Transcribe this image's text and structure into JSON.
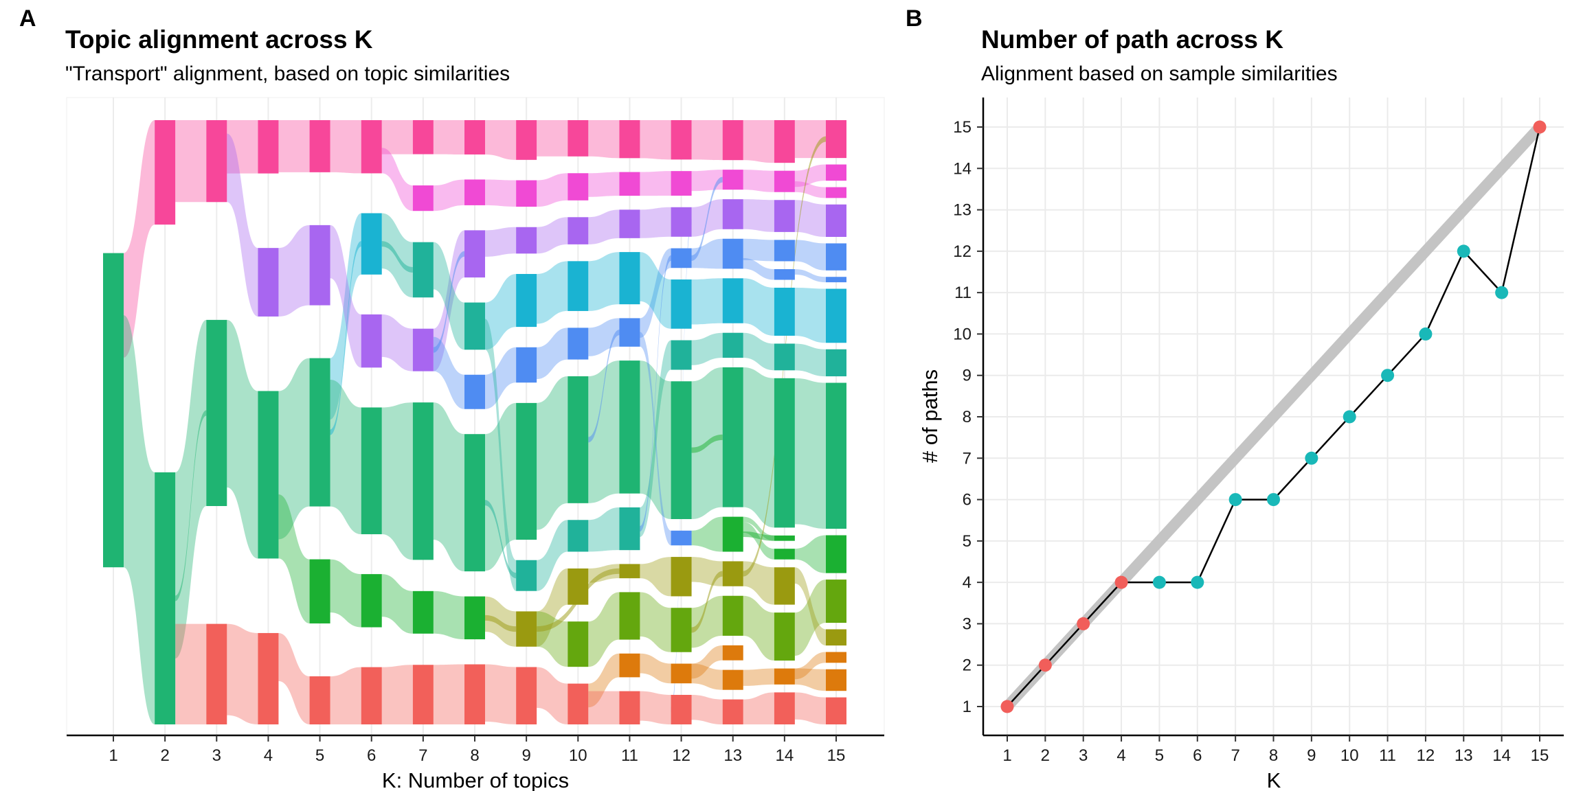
{
  "panels": {
    "a": {
      "tag": "A",
      "title": "Topic alignment across K",
      "subtitle": "\"Transport\" alignment, based on topic similarities",
      "xlabel": "K: Number of topics"
    },
    "b": {
      "tag": "B",
      "title": "Number of path across K",
      "subtitle": "Alignment based on sample similarities",
      "xlabel": "K",
      "ylabel": "# of paths"
    }
  },
  "colors": {
    "red": "#f2605a",
    "orange": "#dd7a0c",
    "olive": "#9a9a10",
    "lightgreen": "#64a70e",
    "green": "#1bb032",
    "emerald": "#1fb472",
    "teal": "#20b29a",
    "cyan": "#1ab3d2",
    "blue": "#4f8cf2",
    "purple": "#a866f0",
    "magenta": "#f04ad4",
    "pink": "#f7479a",
    "path_line": "#c4c4c4",
    "point_match": "#f15e5a",
    "point_diverge": "#19b8b8"
  },
  "chart_data": [
    {
      "type": "alluvial",
      "title": "Topic alignment across K",
      "subtitle": "\"Transport\" alignment, based on topic similarities",
      "xlabel": "K: Number of topics",
      "ylabel": "",
      "x": [
        1,
        2,
        3,
        4,
        5,
        6,
        7,
        8,
        9,
        10,
        11,
        12,
        13,
        14,
        15
      ],
      "value_unit": "proportion",
      "grid": "vertical",
      "topics": [
        {
          "k": 1,
          "color": "emerald",
          "size": 1.0,
          "src": null,
          "l": 1
        },
        {
          "k": 2,
          "color": "pink",
          "size": 0.29,
          "src": 0,
          "l": 1
        },
        {
          "k": 2,
          "color": "emerald",
          "size": 0.7,
          "src": 0,
          "l": 0
        },
        {
          "k": 3,
          "color": "pink",
          "size": 0.22,
          "src": 1,
          "l": 1
        },
        {
          "k": 3,
          "color": "emerald",
          "size": 0.5,
          "src": 2,
          "l": 1
        },
        {
          "k": 3,
          "color": "red",
          "size": 0.27,
          "src": 2,
          "l": 1
        },
        {
          "k": 4,
          "color": "pink",
          "size": 0.14,
          "src": 3,
          "l": 1
        },
        {
          "k": 4,
          "color": "purple",
          "size": 0.18,
          "src": 3,
          "l": 1
        },
        {
          "k": 4,
          "color": "emerald",
          "size": 0.44,
          "src": 4,
          "l": 1
        },
        {
          "k": 4,
          "color": "red",
          "size": 0.24,
          "src": 5,
          "l": 1
        },
        {
          "k": 5,
          "color": "pink",
          "size": 0.13,
          "src": 6,
          "l": 1
        },
        {
          "k": 5,
          "color": "purple",
          "size": 0.2,
          "src": 7,
          "l": 1
        },
        {
          "k": 5,
          "color": "emerald",
          "size": 0.37,
          "src": 8,
          "l": 1
        },
        {
          "k": 5,
          "color": "green",
          "size": 0.16,
          "src": 8,
          "l": 1
        },
        {
          "k": 5,
          "color": "red",
          "size": 0.12,
          "src": 9,
          "l": 1
        },
        {
          "k": 6,
          "color": "pink",
          "size": 0.13,
          "src": 10,
          "l": 1
        },
        {
          "k": 6,
          "color": "cyan",
          "size": 0.15,
          "src": 12,
          "l": 1
        },
        {
          "k": 6,
          "color": "purple",
          "size": 0.13,
          "src": 11,
          "l": 1
        },
        {
          "k": 6,
          "color": "emerald",
          "size": 0.31,
          "src": 12,
          "l": 1
        },
        {
          "k": 6,
          "color": "green",
          "size": 0.13,
          "src": 13,
          "l": 1
        },
        {
          "k": 6,
          "color": "red",
          "size": 0.14,
          "src": 14,
          "l": 1
        },
        {
          "k": 7,
          "color": "pink",
          "size": 0.08,
          "src": 15,
          "l": 1
        },
        {
          "k": 7,
          "color": "magenta",
          "size": 0.06,
          "src": 15,
          "l": 1
        },
        {
          "k": 7,
          "color": "teal",
          "size": 0.13,
          "src": 16,
          "l": 1
        },
        {
          "k": 7,
          "color": "purple",
          "size": 0.1,
          "src": 17,
          "l": 1
        },
        {
          "k": 7,
          "color": "emerald",
          "size": 0.37,
          "src": 18,
          "l": 1
        },
        {
          "k": 7,
          "color": "green",
          "size": 0.1,
          "src": 19,
          "l": 1
        },
        {
          "k": 7,
          "color": "red",
          "size": 0.14,
          "src": 20,
          "l": 1
        },
        {
          "k": 8,
          "color": "pink",
          "size": 0.08,
          "src": 21,
          "l": 1
        },
        {
          "k": 8,
          "color": "magenta",
          "size": 0.06,
          "src": 22,
          "l": 1
        },
        {
          "k": 8,
          "color": "purple",
          "size": 0.11,
          "src": 24,
          "l": 1
        },
        {
          "k": 8,
          "color": "teal",
          "size": 0.11,
          "src": 23,
          "l": 1
        },
        {
          "k": 8,
          "color": "blue",
          "size": 0.08,
          "src": 24,
          "l": 1
        },
        {
          "k": 8,
          "color": "emerald",
          "size": 0.32,
          "src": 25,
          "l": 1
        },
        {
          "k": 8,
          "color": "green",
          "size": 0.1,
          "src": 26,
          "l": 1
        },
        {
          "k": 8,
          "color": "red",
          "size": 0.14,
          "src": 27,
          "l": 1
        },
        {
          "k": 9,
          "color": "pink",
          "size": 0.09,
          "src": 28,
          "l": 1
        },
        {
          "k": 9,
          "color": "magenta",
          "size": 0.06,
          "src": 29,
          "l": 1
        },
        {
          "k": 9,
          "color": "purple",
          "size": 0.06,
          "src": 30,
          "l": 1
        },
        {
          "k": 9,
          "color": "cyan",
          "size": 0.12,
          "src": 31,
          "l": 1
        },
        {
          "k": 9,
          "color": "blue",
          "size": 0.08,
          "src": 32,
          "l": 1
        },
        {
          "k": 9,
          "color": "emerald",
          "size": 0.31,
          "src": 33,
          "l": 1
        },
        {
          "k": 9,
          "color": "teal",
          "size": 0.07,
          "src": 31,
          "l": 1
        },
        {
          "k": 9,
          "color": "olive",
          "size": 0.08,
          "src": 34,
          "l": 1
        },
        {
          "k": 9,
          "color": "red",
          "size": 0.13,
          "src": 35,
          "l": 1
        },
        {
          "k": 10,
          "color": "pink",
          "size": 0.08,
          "src": 36,
          "l": 1
        },
        {
          "k": 10,
          "color": "magenta",
          "size": 0.06,
          "src": 37,
          "l": 1
        },
        {
          "k": 10,
          "color": "purple",
          "size": 0.06,
          "src": 38,
          "l": 1
        },
        {
          "k": 10,
          "color": "cyan",
          "size": 0.11,
          "src": 39,
          "l": 1
        },
        {
          "k": 10,
          "color": "blue",
          "size": 0.07,
          "src": 40,
          "l": 1
        },
        {
          "k": 10,
          "color": "emerald",
          "size": 0.28,
          "src": 41,
          "l": 1
        },
        {
          "k": 10,
          "color": "teal",
          "size": 0.07,
          "src": 42,
          "l": 1
        },
        {
          "k": 10,
          "color": "olive",
          "size": 0.08,
          "src": 43,
          "l": 1
        },
        {
          "k": 10,
          "color": "lightgreen",
          "size": 0.1,
          "src": 43,
          "l": 1
        },
        {
          "k": 10,
          "color": "red",
          "size": 0.09,
          "src": 44,
          "l": 1
        },
        {
          "k": 11,
          "color": "pink",
          "size": 0.08,
          "src": 45,
          "l": 1
        },
        {
          "k": 11,
          "color": "magenta",
          "size": 0.05,
          "src": 46,
          "l": 1
        },
        {
          "k": 11,
          "color": "purple",
          "size": 0.06,
          "src": 47,
          "l": 1
        },
        {
          "k": 11,
          "color": "cyan",
          "size": 0.11,
          "src": 48,
          "l": 1
        },
        {
          "k": 11,
          "color": "blue",
          "size": 0.06,
          "src": 49,
          "l": 1
        },
        {
          "k": 11,
          "color": "emerald",
          "size": 0.28,
          "src": 50,
          "l": 1
        },
        {
          "k": 11,
          "color": "teal",
          "size": 0.09,
          "src": 51,
          "l": 1
        },
        {
          "k": 11,
          "color": "olive",
          "size": 0.03,
          "src": 52,
          "l": 1
        },
        {
          "k": 11,
          "color": "lightgreen",
          "size": 0.1,
          "src": 53,
          "l": 1
        },
        {
          "k": 11,
          "color": "orange",
          "size": 0.05,
          "src": 54,
          "l": 1
        },
        {
          "k": 11,
          "color": "red",
          "size": 0.07,
          "src": 54,
          "l": 1
        },
        {
          "k": 12,
          "color": "pink",
          "size": 0.08,
          "src": 55,
          "l": 1
        },
        {
          "k": 12,
          "color": "magenta",
          "size": 0.05,
          "src": 56,
          "l": 1
        },
        {
          "k": 12,
          "color": "purple",
          "size": 0.06,
          "src": 57,
          "l": 1
        },
        {
          "k": 12,
          "color": "blue",
          "size": 0.04,
          "src": 59,
          "l": 1
        },
        {
          "k": 12,
          "color": "cyan",
          "size": 0.1,
          "src": 58,
          "l": 1
        },
        {
          "k": 12,
          "color": "teal",
          "size": 0.06,
          "src": 61,
          "l": 1
        },
        {
          "k": 12,
          "color": "emerald",
          "size": 0.28,
          "src": 60,
          "l": 1
        },
        {
          "k": 12,
          "color": "blue",
          "size": 0.03,
          "src": 59,
          "l": 1
        },
        {
          "k": 12,
          "color": "olive",
          "size": 0.08,
          "src": 62,
          "l": 1
        },
        {
          "k": 12,
          "color": "lightgreen",
          "size": 0.09,
          "src": 63,
          "l": 1
        },
        {
          "k": 12,
          "color": "orange",
          "size": 0.04,
          "src": 64,
          "l": 1
        },
        {
          "k": 12,
          "color": "red",
          "size": 0.06,
          "src": 65,
          "l": 1
        },
        {
          "k": 13,
          "color": "pink",
          "size": 0.08,
          "src": 66,
          "l": 1
        },
        {
          "k": 13,
          "color": "magenta",
          "size": 0.04,
          "src": 67,
          "l": 1
        },
        {
          "k": 13,
          "color": "purple",
          "size": 0.06,
          "src": 68,
          "l": 1
        },
        {
          "k": 13,
          "color": "blue",
          "size": 0.06,
          "src": 69,
          "l": 1
        },
        {
          "k": 13,
          "color": "cyan",
          "size": 0.09,
          "src": 70,
          "l": 1
        },
        {
          "k": 13,
          "color": "teal",
          "size": 0.05,
          "src": 71,
          "l": 1
        },
        {
          "k": 13,
          "color": "emerald",
          "size": 0.28,
          "src": 72,
          "l": 1
        },
        {
          "k": 13,
          "color": "green",
          "size": 0.07,
          "src": 73,
          "l": 1
        },
        {
          "k": 13,
          "color": "olive",
          "size": 0.05,
          "src": 74,
          "l": 1
        },
        {
          "k": 13,
          "color": "lightgreen",
          "size": 0.08,
          "src": 75,
          "l": 1
        },
        {
          "k": 13,
          "color": "orange",
          "size": 0.03,
          "src": 76,
          "l": 1
        },
        {
          "k": 13,
          "color": "orange",
          "size": 0.04,
          "src": 76,
          "l": 1
        },
        {
          "k": 13,
          "color": "red",
          "size": 0.05,
          "src": 77,
          "l": 1
        },
        {
          "k": 14,
          "color": "pink",
          "size": 0.08,
          "src": 78,
          "l": 1
        },
        {
          "k": 14,
          "color": "magenta",
          "size": 0.04,
          "src": 79,
          "l": 1
        },
        {
          "k": 14,
          "color": "purple",
          "size": 0.06,
          "src": 80,
          "l": 1
        },
        {
          "k": 14,
          "color": "blue",
          "size": 0.04,
          "src": 81,
          "l": 1
        },
        {
          "k": 14,
          "color": "blue",
          "size": 0.02,
          "src": 81,
          "l": 1
        },
        {
          "k": 14,
          "color": "cyan",
          "size": 0.09,
          "src": 82,
          "l": 1
        },
        {
          "k": 14,
          "color": "teal",
          "size": 0.05,
          "src": 83,
          "l": 1
        },
        {
          "k": 14,
          "color": "emerald",
          "size": 0.28,
          "src": 84,
          "l": 1
        },
        {
          "k": 14,
          "color": "green",
          "size": 0.01,
          "src": 85,
          "l": 1
        },
        {
          "k": 14,
          "color": "green",
          "size": 0.02,
          "src": 85,
          "l": 1
        },
        {
          "k": 14,
          "color": "olive",
          "size": 0.07,
          "src": 86,
          "l": 1
        },
        {
          "k": 14,
          "color": "lightgreen",
          "size": 0.09,
          "src": 87,
          "l": 1
        },
        {
          "k": 14,
          "color": "orange",
          "size": 0.03,
          "src": 89,
          "l": 1
        },
        {
          "k": 14,
          "color": "red",
          "size": 0.06,
          "src": 90,
          "l": 1
        },
        {
          "k": 15,
          "color": "pink",
          "size": 0.07,
          "src": 91,
          "l": 1
        },
        {
          "k": 15,
          "color": "magenta",
          "size": 0.03,
          "src": 92,
          "l": 1
        },
        {
          "k": 15,
          "color": "magenta",
          "size": 0.02,
          "src": 92,
          "l": 1
        },
        {
          "k": 15,
          "color": "purple",
          "size": 0.06,
          "src": 93,
          "l": 1
        },
        {
          "k": 15,
          "color": "blue",
          "size": 0.05,
          "src": 94,
          "l": 1
        },
        {
          "k": 15,
          "color": "blue",
          "size": 0.01,
          "src": 95,
          "l": 1
        },
        {
          "k": 15,
          "color": "cyan",
          "size": 0.1,
          "src": 96,
          "l": 1
        },
        {
          "k": 15,
          "color": "teal",
          "size": 0.05,
          "src": 97,
          "l": 1
        },
        {
          "k": 15,
          "color": "emerald",
          "size": 0.27,
          "src": 98,
          "l": 1
        },
        {
          "k": 15,
          "color": "green",
          "size": 0.07,
          "src": 100,
          "l": 1
        },
        {
          "k": 15,
          "color": "lightgreen",
          "size": 0.08,
          "src": 102,
          "l": 1
        },
        {
          "k": 15,
          "color": "olive",
          "size": 0.03,
          "src": 101,
          "l": 1
        },
        {
          "k": 15,
          "color": "orange",
          "size": 0.02,
          "src": 103,
          "l": 1
        },
        {
          "k": 15,
          "color": "orange",
          "size": 0.04,
          "src": 103,
          "l": 1
        },
        {
          "k": 15,
          "color": "red",
          "size": 0.05,
          "src": 104,
          "l": 1
        }
      ],
      "links": [
        {
          "s": 24,
          "t": 30,
          "c": "blue"
        },
        {
          "s": 16,
          "t": 23,
          "c": "teal"
        },
        {
          "s": 12,
          "t": 16,
          "c": "cyan"
        },
        {
          "s": 33,
          "t": 42,
          "c": "teal"
        },
        {
          "s": 34,
          "t": 43,
          "c": "olive"
        },
        {
          "s": 43,
          "t": 62,
          "c": "olive"
        },
        {
          "s": 50,
          "t": 59,
          "c": "blue"
        },
        {
          "s": 61,
          "t": 69,
          "c": "blue"
        },
        {
          "s": 68,
          "t": 77,
          "c": "blue"
        },
        {
          "s": 69,
          "t": 79,
          "c": "blue"
        },
        {
          "s": 72,
          "t": 84,
          "c": "green"
        },
        {
          "s": 75,
          "t": 86,
          "c": "olive"
        },
        {
          "s": 86,
          "t": 105,
          "c": "olive"
        },
        {
          "s": 85,
          "t": 99,
          "c": "green"
        },
        {
          "s": 2,
          "t": 4,
          "c": "emerald"
        }
      ]
    },
    {
      "type": "line",
      "title": "Number of path across K",
      "subtitle": "Alignment based on sample similarities",
      "xlabel": "K",
      "ylabel": "# of paths",
      "x": [
        1,
        2,
        3,
        4,
        5,
        6,
        7,
        8,
        9,
        10,
        11,
        12,
        13,
        14,
        15
      ],
      "series": [
        {
          "values": [
            1,
            2,
            3,
            4,
            4,
            4,
            6,
            6,
            7,
            8,
            9,
            10,
            12,
            11,
            15
          ]
        }
      ],
      "reference_line": {
        "x": [
          1,
          15
        ],
        "y": [
          1,
          15
        ]
      },
      "point_groups": [
        "match",
        "match",
        "match",
        "match",
        "diverge",
        "diverge",
        "diverge",
        "diverge",
        "diverge",
        "diverge",
        "diverge",
        "diverge",
        "diverge",
        "diverge",
        "match"
      ],
      "xlim": [
        1,
        15
      ],
      "ylim": [
        1,
        15
      ],
      "xticks": [
        1,
        2,
        3,
        4,
        5,
        6,
        7,
        8,
        9,
        10,
        11,
        12,
        13,
        14,
        15
      ],
      "yticks": [
        1,
        2,
        3,
        4,
        5,
        6,
        7,
        8,
        9,
        10,
        11,
        12,
        13,
        14,
        15
      ],
      "grid": true,
      "legend": "none"
    }
  ]
}
